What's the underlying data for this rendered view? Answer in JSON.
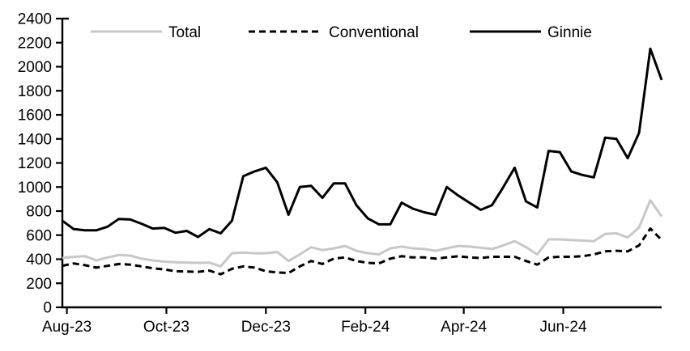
{
  "chart_data": {
    "type": "line",
    "title": "",
    "xlabel": "",
    "ylabel": "",
    "ylim": [
      0,
      2400
    ],
    "y_tick_step": 200,
    "y_ticks": [
      0,
      200,
      400,
      600,
      800,
      1000,
      1200,
      1400,
      1600,
      1800,
      2000,
      2200,
      2400
    ],
    "y_tick_labels": [
      "0",
      "200",
      "400",
      "600",
      "800",
      "1000",
      "1200",
      "1400",
      "1600",
      "1800",
      "2000",
      "2200",
      "2400"
    ],
    "x_tick_labels": [
      "Aug-23",
      "Oct-23",
      "Dec-23",
      "Feb-24",
      "Apr-24",
      "Jun-24"
    ],
    "x_tick_indices": [
      0.4,
      9.2,
      18.0,
      26.8,
      35.5,
      44.3
    ],
    "grid": false,
    "legend_position": "top-inside",
    "axis_color": "#000000",
    "series": [
      {
        "name": "Total",
        "color": "#c8c8c8",
        "style": "solid",
        "values": [
          410,
          420,
          425,
          390,
          415,
          435,
          430,
          405,
          390,
          380,
          375,
          372,
          370,
          372,
          340,
          450,
          455,
          450,
          450,
          460,
          385,
          440,
          500,
          475,
          490,
          510,
          470,
          450,
          440,
          490,
          505,
          490,
          485,
          470,
          490,
          510,
          505,
          495,
          485,
          515,
          550,
          500,
          440,
          565,
          565,
          560,
          555,
          550,
          610,
          615,
          580,
          665,
          890,
          755
        ]
      },
      {
        "name": "Conventional",
        "color": "#000000",
        "style": "dashed",
        "values": [
          345,
          365,
          350,
          330,
          345,
          360,
          355,
          340,
          325,
          315,
          300,
          298,
          295,
          305,
          275,
          320,
          340,
          330,
          300,
          290,
          285,
          340,
          385,
          360,
          405,
          415,
          385,
          370,
          365,
          405,
          425,
          415,
          415,
          405,
          415,
          425,
          415,
          410,
          420,
          420,
          420,
          385,
          355,
          415,
          420,
          420,
          425,
          440,
          465,
          470,
          465,
          515,
          655,
          560
        ]
      },
      {
        "name": "Ginnie",
        "color": "#000000",
        "style": "solid",
        "values": [
          720,
          650,
          640,
          640,
          670,
          735,
          730,
          695,
          655,
          660,
          620,
          635,
          585,
          650,
          615,
          720,
          1090,
          1130,
          1160,
          1040,
          770,
          1000,
          1010,
          910,
          1030,
          1030,
          850,
          740,
          690,
          690,
          870,
          820,
          790,
          770,
          1000,
          930,
          870,
          810,
          850,
          1000,
          1160,
          880,
          830,
          1300,
          1290,
          1130,
          1100,
          1080,
          1410,
          1400,
          1240,
          1450,
          2150,
          1890
        ]
      }
    ]
  }
}
